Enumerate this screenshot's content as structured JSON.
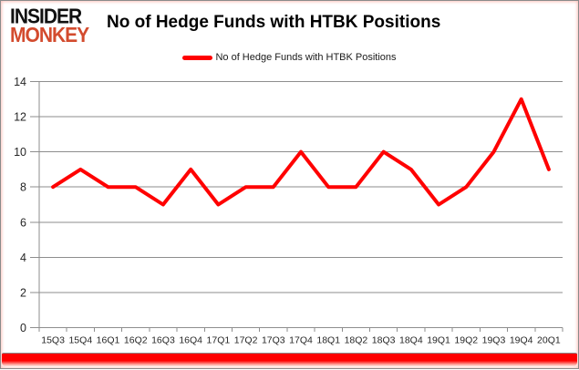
{
  "logo": {
    "line1": "INSIDER",
    "line2": "MONKEY",
    "line1_color": "#111111",
    "line2_color": "#d34b2e"
  },
  "header": {
    "title": "No of Hedge Funds with HTBK Positions"
  },
  "legend": {
    "label": "No of Hedge Funds with HTBK Positions",
    "marker": "red-line",
    "line_color": "#ff0000"
  },
  "chart_data": {
    "type": "line",
    "title": "No of Hedge Funds with HTBK Positions",
    "series_name": "No of Hedge Funds with HTBK Positions",
    "categories": [
      "15Q3",
      "15Q4",
      "16Q1",
      "16Q2",
      "16Q3",
      "16Q4",
      "17Q1",
      "17Q2",
      "17Q3",
      "17Q4",
      "18Q1",
      "18Q2",
      "18Q3",
      "18Q4",
      "19Q1",
      "19Q2",
      "19Q3",
      "19Q4",
      "20Q1"
    ],
    "values": [
      8,
      9,
      8,
      8,
      7,
      9,
      7,
      8,
      8,
      10,
      8,
      8,
      10,
      9,
      7,
      8,
      10,
      13,
      9
    ],
    "xlabel": "",
    "ylabel": "",
    "ylim": [
      0,
      14
    ],
    "ytick_step": 2,
    "yticks": [
      0,
      2,
      4,
      6,
      8,
      10,
      12,
      14
    ],
    "grid": true,
    "legend_position": "top-center",
    "line_color": "#ff0000",
    "line_width": 4,
    "gridline_color": "#8e8e8e",
    "axis_color": "#8e8e8e",
    "tick_label_color": "#262626"
  },
  "frame": {
    "border_color": "#8b8b8b",
    "bottom_bar_color": "#fe0000"
  }
}
